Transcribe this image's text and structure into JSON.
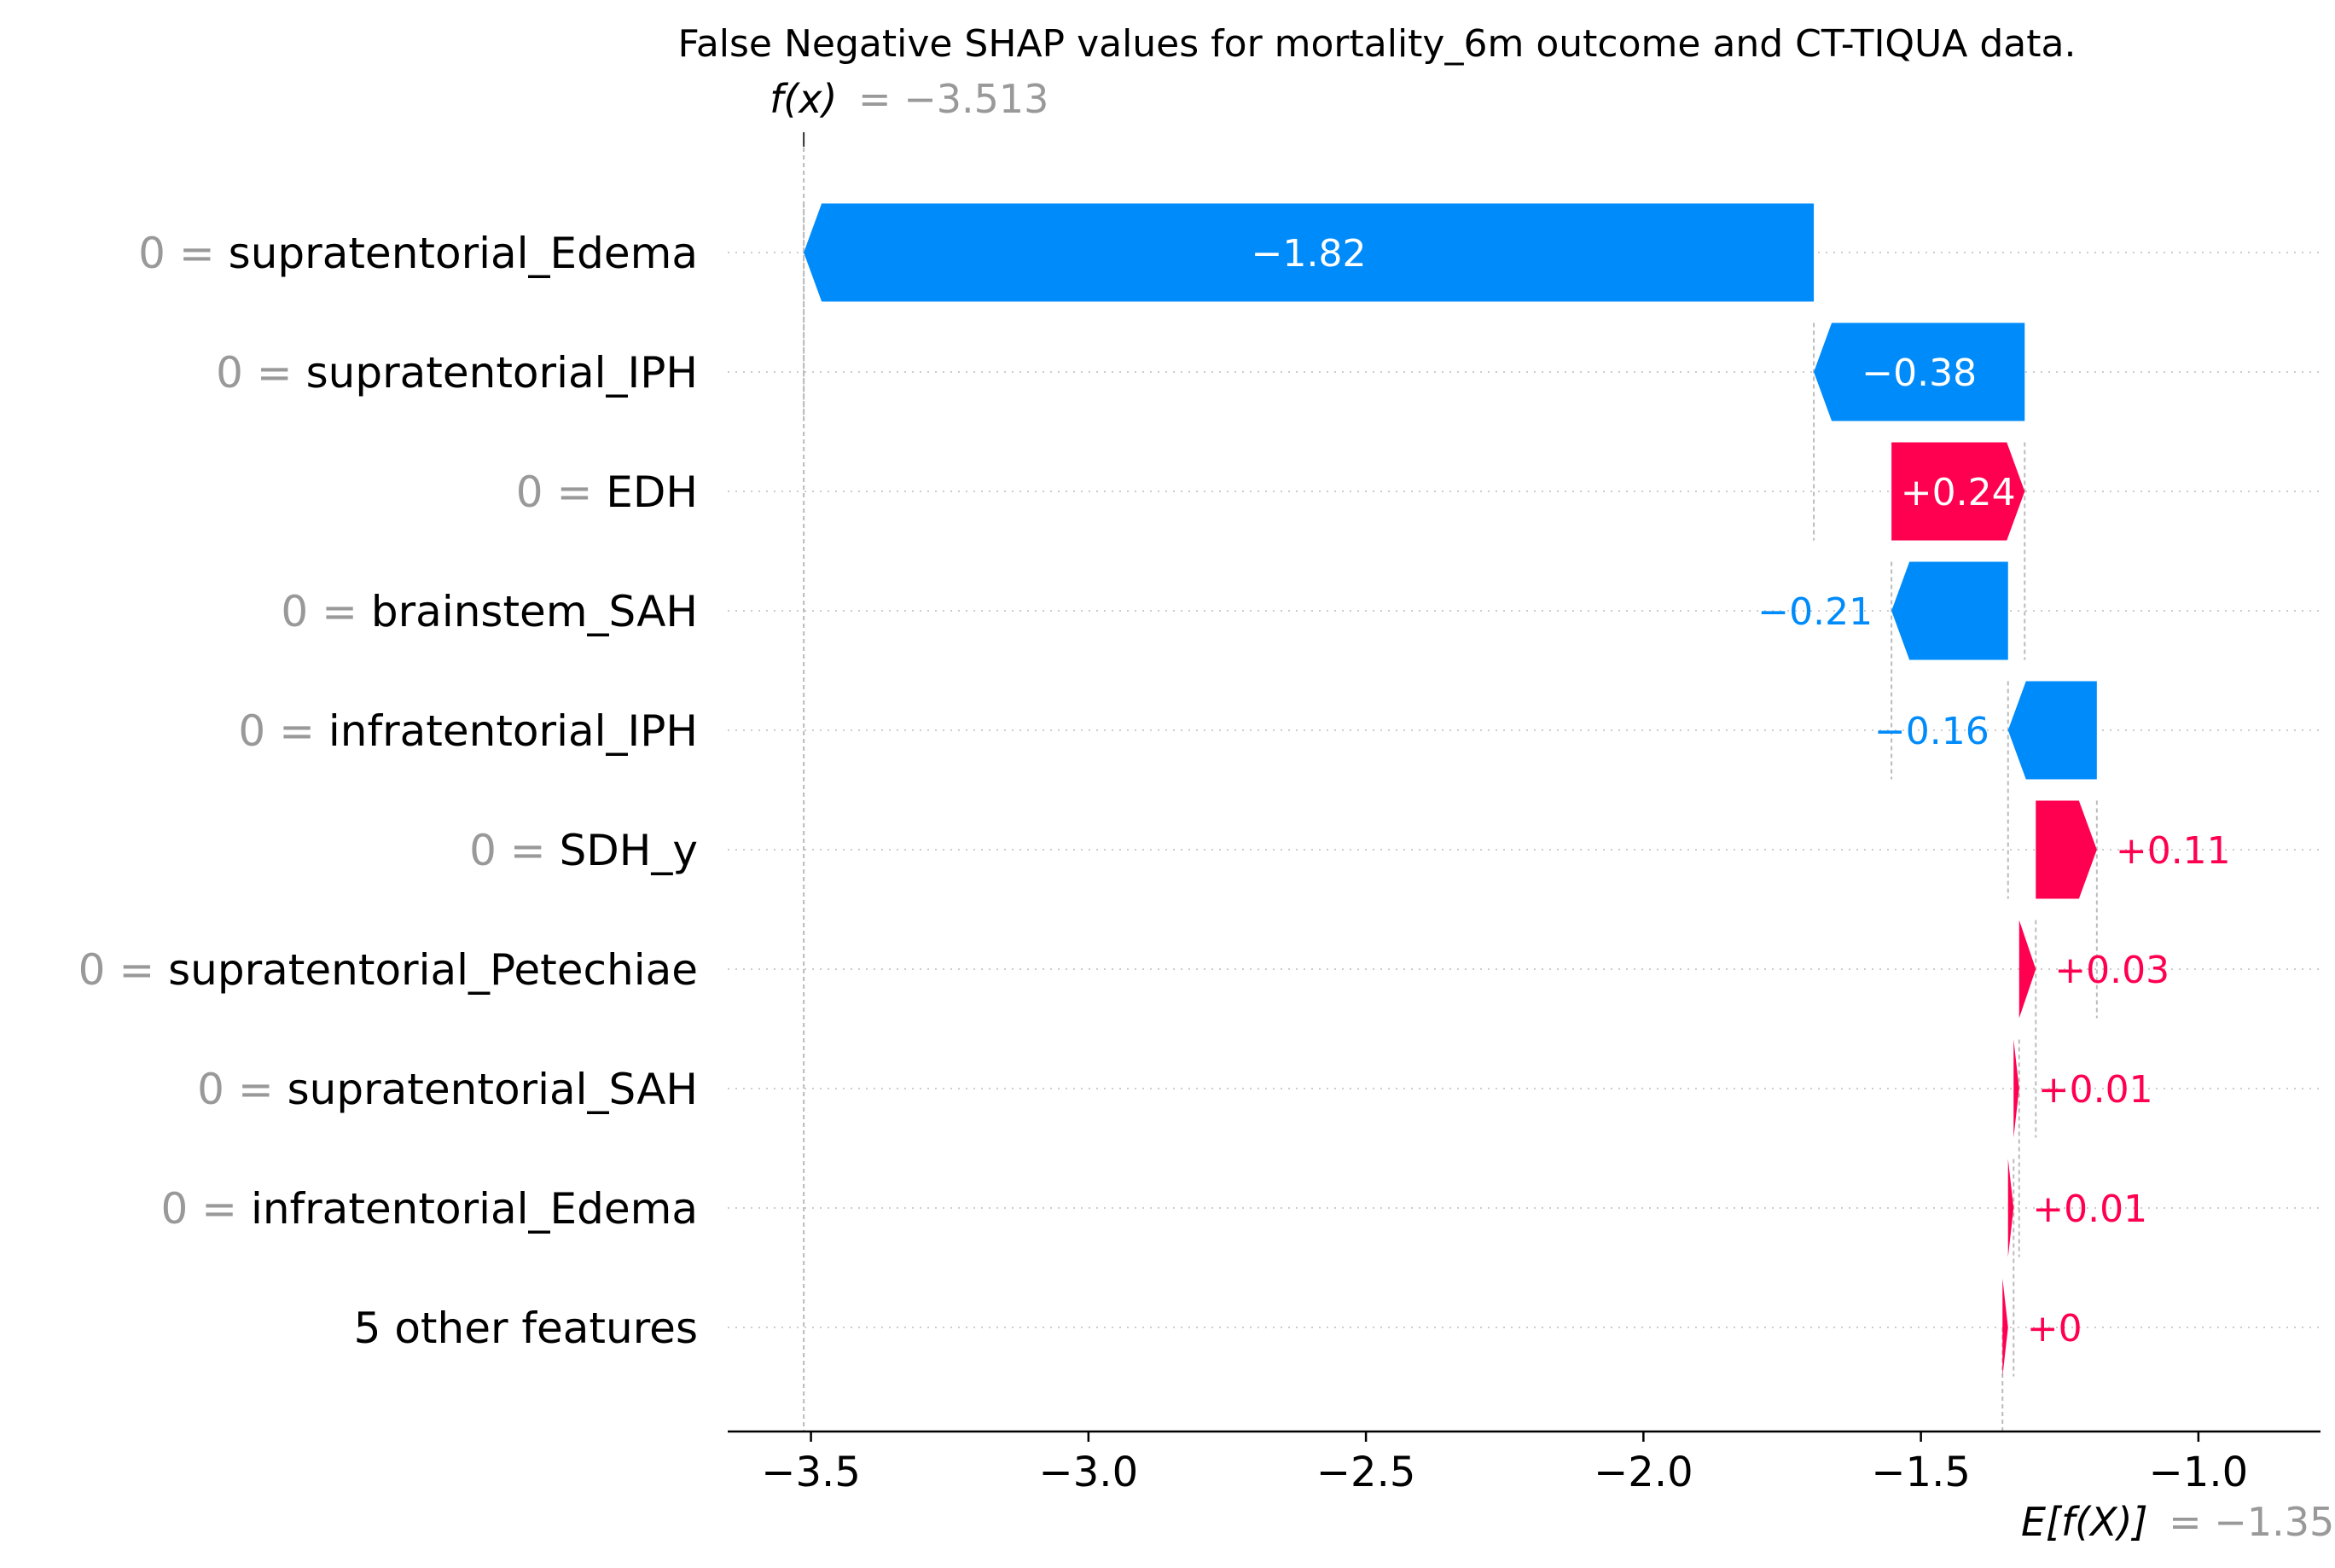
{
  "chart_data": {
    "type": "bar",
    "subtype": "waterfall",
    "title": "False Negative SHAP values for mortality_6m outcome and CT-TIQUA data.",
    "fx_label": "f(x)",
    "fx_value_text": "= −3.513",
    "fx": -3.513,
    "ex_label": "E[f(X)]",
    "ex_value_text": "= −1.353",
    "base_value": -1.353,
    "xlim": [
      -3.65,
      -0.78
    ],
    "xticks": [
      -3.5,
      -3.0,
      -2.5,
      -2.0,
      -1.5,
      -1.0
    ],
    "xtick_labels": [
      "−3.5",
      "−3.0",
      "−2.5",
      "−2.0",
      "−1.5",
      "−1.0"
    ],
    "colors": {
      "negative": "#008bfb",
      "positive": "#ff0051",
      "grey": "#999999"
    },
    "features": [
      {
        "value_text": "0 = ",
        "name": "supratentorial_Edema",
        "start": -1.693,
        "end": -3.513,
        "label": "−1.82"
      },
      {
        "value_text": "0 = ",
        "name": "supratentorial_IPH",
        "start": -1.313,
        "end": -1.693,
        "label": "−0.38"
      },
      {
        "value_text": "0 = ",
        "name": "EDH",
        "start": -1.553,
        "end": -1.313,
        "label": "+0.24"
      },
      {
        "value_text": "0 = ",
        "name": "brainstem_SAH",
        "start": -1.343,
        "end": -1.553,
        "label": "−0.21"
      },
      {
        "value_text": "0 = ",
        "name": "infratentorial_IPH",
        "start": -1.183,
        "end": -1.343,
        "label": "−0.16"
      },
      {
        "value_text": "0 = ",
        "name": "SDH_y",
        "start": -1.293,
        "end": -1.183,
        "label": "+0.11"
      },
      {
        "value_text": "0 = ",
        "name": "supratentorial_Petechiae",
        "start": -1.323,
        "end": -1.293,
        "label": "+0.03"
      },
      {
        "value_text": "0 = ",
        "name": "supratentorial_SAH",
        "start": -1.333,
        "end": -1.323,
        "label": "+0.01"
      },
      {
        "value_text": "0 = ",
        "name": "infratentorial_Edema",
        "start": -1.343,
        "end": -1.333,
        "label": "+0.01"
      },
      {
        "value_text": "",
        "name": "5 other features",
        "start": -1.353,
        "end": -1.343,
        "label": "+0"
      }
    ]
  }
}
